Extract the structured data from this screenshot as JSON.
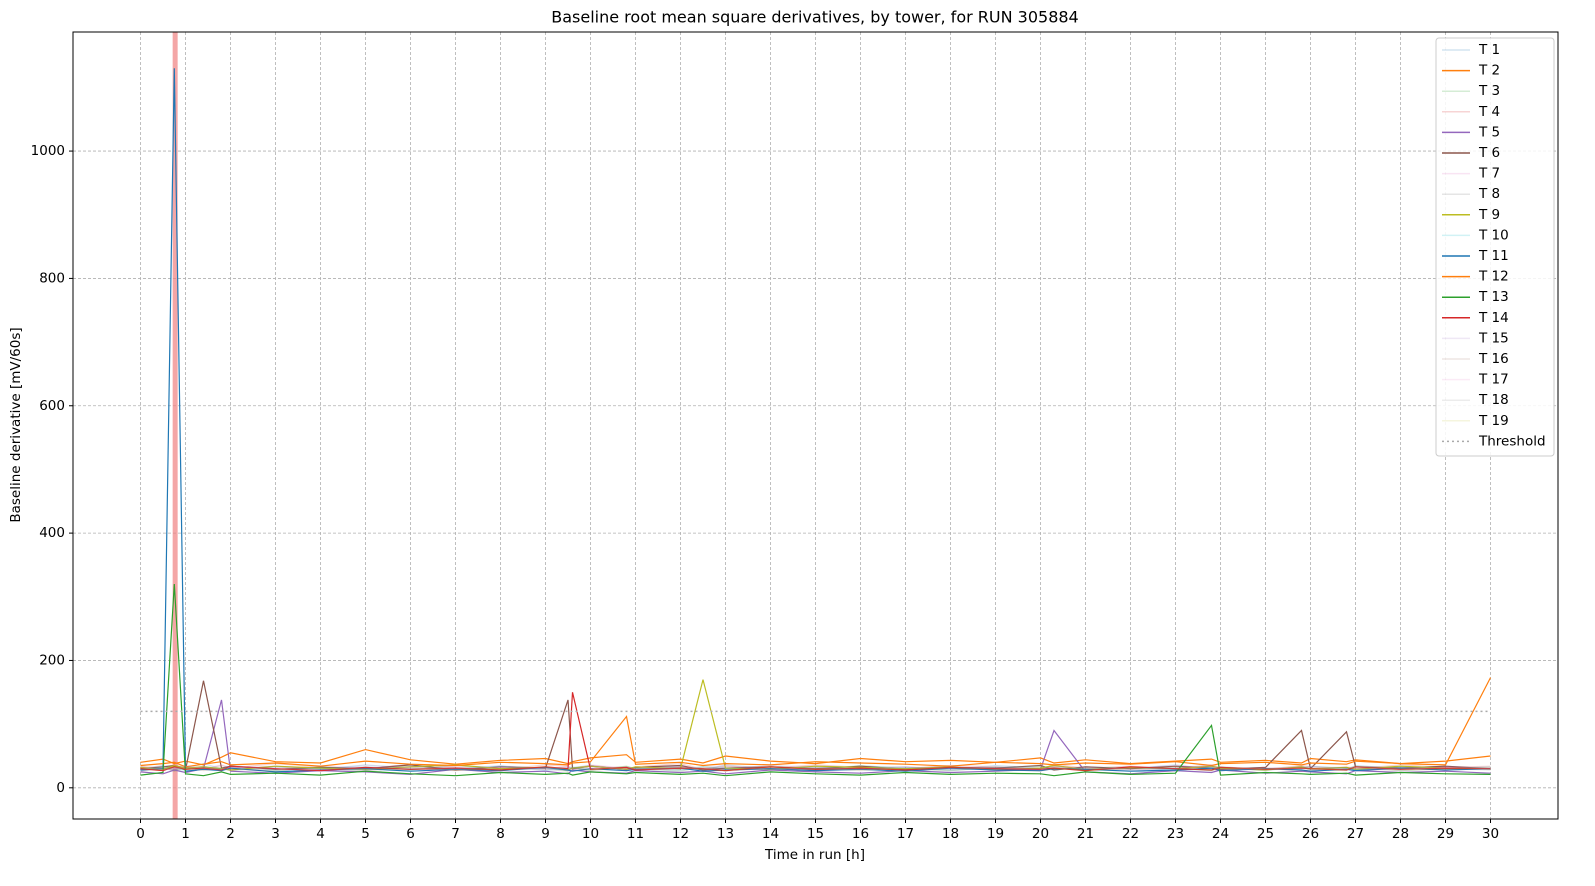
{
  "chart_data": {
    "type": "line",
    "title": "Baseline root mean square derivatives, by tower, for RUN 305884",
    "xlabel": "Time in run [h]",
    "ylabel": "Baseline derivative [mV/60s]",
    "xlim": [
      -1.5,
      31.5
    ],
    "ylim": [
      -49,
      1187
    ],
    "xticks": [
      0,
      1,
      2,
      3,
      4,
      5,
      6,
      7,
      8,
      9,
      10,
      11,
      12,
      13,
      14,
      15,
      16,
      17,
      18,
      19,
      20,
      21,
      22,
      23,
      24,
      25,
      26,
      27,
      28,
      29,
      30
    ],
    "yticks": [
      0,
      200,
      400,
      600,
      800,
      1000
    ],
    "grid": true,
    "legend": "upper right",
    "threshold": {
      "name": "Threshold",
      "value": 120,
      "color": "#aaaaaa",
      "x": [
        0,
        30
      ]
    },
    "highlight_x": 0.77,
    "highlight_color": "#f08080",
    "x": [
      0,
      0.5,
      0.75,
      1,
      1.4,
      1.8,
      2,
      3,
      4,
      5,
      6,
      7,
      8,
      9,
      9.5,
      9.6,
      10,
      10.8,
      11,
      12,
      12.5,
      13,
      14,
      15,
      16,
      17,
      18,
      19,
      20,
      20.3,
      21,
      22,
      23,
      23.8,
      24,
      25,
      25.8,
      26,
      26.8,
      27,
      28,
      29,
      30
    ],
    "series": [
      {
        "name": "T 1",
        "color": "#1f77b4",
        "alpha": 0.2,
        "values": [
          30,
          35,
          28,
          32,
          38,
          30,
          27,
          33,
          29,
          36,
          31,
          28,
          34,
          30,
          27,
          32,
          35,
          29,
          31,
          33,
          28,
          36,
          30,
          27,
          34,
          32,
          29,
          35,
          31,
          28,
          33,
          30,
          36,
          29,
          32,
          27,
          34,
          31,
          28,
          35,
          30,
          33,
          29
        ]
      },
      {
        "name": "T 2",
        "color": "#ff7f0e",
        "alpha": 1,
        "values": [
          40,
          45,
          38,
          42,
          36,
          48,
          55,
          41,
          39,
          60,
          44,
          37,
          43,
          46,
          38,
          41,
          47,
          52,
          40,
          45,
          39,
          50,
          42,
          38,
          46,
          41,
          43,
          40,
          47,
          39,
          44,
          38,
          42,
          45,
          40,
          43,
          39,
          46,
          41,
          44,
          38,
          42,
          50
        ]
      },
      {
        "name": "T 3",
        "color": "#2ca02c",
        "alpha": 0.2,
        "values": [
          28,
          32,
          26,
          30,
          34,
          29,
          31,
          27,
          33,
          30,
          28,
          35,
          29,
          32,
          27,
          31,
          28,
          34,
          30,
          26,
          33,
          29,
          31,
          28,
          35,
          30,
          27,
          32,
          29,
          34,
          28,
          31,
          30,
          27,
          33,
          29,
          32,
          28,
          30,
          34,
          27,
          31,
          29
        ]
      },
      {
        "name": "T 4",
        "color": "#d62728",
        "alpha": 0.2,
        "values": [
          34,
          30,
          36,
          32,
          29,
          35,
          31,
          38,
          33,
          30,
          37,
          32,
          29,
          36,
          34,
          31,
          35,
          30,
          33,
          38,
          29,
          34,
          31,
          36,
          32,
          30,
          35,
          33,
          29,
          37,
          31,
          34,
          30,
          36,
          32,
          29,
          35,
          33,
          31,
          30,
          36,
          32,
          34
        ]
      },
      {
        "name": "T 5",
        "color": "#9467bd",
        "alpha": 1,
        "values": [
          25,
          22,
          28,
          24,
          30,
          138,
          26,
          23,
          27,
          25,
          21,
          29,
          24,
          26,
          22,
          28,
          25,
          23,
          27,
          24,
          26,
          22,
          28,
          25,
          23,
          27,
          24,
          26,
          29,
          90,
          25,
          22,
          27,
          24,
          28,
          23,
          26,
          25,
          22,
          27,
          24,
          26,
          23
        ]
      },
      {
        "name": "T 6",
        "color": "#8c564b",
        "alpha": 1,
        "values": [
          30,
          33,
          35,
          28,
          168,
          31,
          34,
          29,
          32,
          30,
          36,
          28,
          33,
          31,
          138,
          30,
          34,
          29,
          32,
          35,
          28,
          31,
          33,
          30,
          34,
          29,
          32,
          31,
          35,
          28,
          33,
          30,
          34,
          31,
          29,
          32,
          90,
          30,
          88,
          33,
          31,
          34,
          30
        ]
      },
      {
        "name": "T 7",
        "color": "#e377c2",
        "alpha": 0.2,
        "values": [
          31,
          34,
          29,
          33,
          30,
          36,
          32,
          28,
          35,
          31,
          29,
          34,
          32,
          30,
          33,
          28,
          36,
          31,
          29,
          34,
          30,
          32,
          28,
          35,
          31,
          33,
          29,
          30,
          34,
          32,
          28,
          31,
          35,
          30,
          33,
          29,
          32,
          34,
          30,
          28,
          33,
          31,
          32
        ]
      },
      {
        "name": "T 8",
        "color": "#7f7f7f",
        "alpha": 0.2,
        "values": [
          27,
          31,
          29,
          33,
          28,
          30,
          34,
          29,
          31,
          27,
          33,
          30,
          28,
          32,
          29,
          31,
          27,
          33,
          30,
          28,
          32,
          29,
          34,
          30,
          27,
          31,
          33,
          28,
          30,
          32,
          29,
          27,
          31,
          33,
          28,
          30,
          32,
          29,
          31,
          27,
          33,
          30,
          28
        ]
      },
      {
        "name": "T 9",
        "color": "#bcbd22",
        "alpha": 1,
        "values": [
          32,
          29,
          35,
          31,
          33,
          30,
          28,
          34,
          31,
          29,
          33,
          36,
          30,
          32,
          28,
          31,
          34,
          29,
          33,
          30,
          170,
          31,
          29,
          34,
          32,
          30,
          33,
          28,
          31,
          35,
          29,
          32,
          30,
          34,
          31,
          28,
          33,
          30,
          32,
          29,
          34,
          31,
          30
        ]
      },
      {
        "name": "T 10",
        "color": "#17becf",
        "alpha": 0.2,
        "values": [
          29,
          33,
          31,
          27,
          32,
          30,
          35,
          28,
          31,
          33,
          29,
          30,
          34,
          27,
          31,
          32,
          29,
          33,
          30,
          28,
          34,
          31,
          29,
          32,
          30,
          33,
          28,
          31,
          34,
          29,
          30,
          33,
          27,
          31,
          32,
          29,
          30,
          34,
          31,
          28,
          32,
          30,
          33
        ]
      },
      {
        "name": "T 11",
        "color": "#1f77b4",
        "alpha": 1,
        "values": [
          28,
          30,
          1130,
          26,
          29,
          27,
          31,
          25,
          28,
          30,
          26,
          29,
          27,
          32,
          28,
          26,
          30,
          27,
          29,
          31,
          26,
          28,
          30,
          27,
          29,
          26,
          31,
          28,
          27,
          30,
          29,
          26,
          28,
          31,
          27,
          30,
          28,
          26,
          29,
          27,
          31,
          28,
          30
        ]
      },
      {
        "name": "T 12",
        "color": "#ff7f0e",
        "alpha": 1,
        "values": [
          35,
          38,
          40,
          33,
          37,
          41,
          36,
          39,
          34,
          42,
          37,
          35,
          40,
          38,
          36,
          39,
          41,
          112,
          37,
          40,
          35,
          38,
          36,
          41,
          39,
          37,
          34,
          40,
          38,
          36,
          39,
          37,
          41,
          35,
          38,
          40,
          36,
          39,
          37,
          42,
          38,
          36,
          173
        ]
      },
      {
        "name": "T 13",
        "color": "#2ca02c",
        "alpha": 1,
        "values": [
          20,
          24,
          320,
          22,
          19,
          25,
          21,
          23,
          20,
          26,
          22,
          19,
          24,
          21,
          23,
          20,
          25,
          22,
          24,
          21,
          23,
          19,
          25,
          22,
          20,
          24,
          21,
          23,
          22,
          19,
          25,
          21,
          23,
          98,
          20,
          24,
          22,
          21,
          23,
          20,
          24,
          22,
          21
        ]
      },
      {
        "name": "T 14",
        "color": "#d62728",
        "alpha": 1,
        "values": [
          30,
          27,
          33,
          29,
          31,
          28,
          34,
          30,
          27,
          32,
          29,
          31,
          28,
          33,
          30,
          150,
          29,
          32,
          28,
          31,
          30,
          27,
          33,
          29,
          31,
          28,
          32,
          30,
          29,
          31,
          27,
          33,
          30,
          28,
          32,
          29,
          31,
          30,
          28,
          33,
          29,
          31,
          30
        ]
      },
      {
        "name": "T 15",
        "color": "#9467bd",
        "alpha": 0.15,
        "values": [
          33,
          29,
          31,
          35,
          30,
          28,
          32,
          34,
          29,
          31,
          33,
          30,
          35,
          28,
          32,
          30,
          34,
          29,
          31,
          33,
          28,
          30,
          35,
          32,
          29,
          31,
          34,
          30,
          28,
          33,
          31,
          29,
          32,
          35,
          30,
          28,
          31,
          33,
          29,
          32,
          30,
          34,
          31
        ]
      },
      {
        "name": "T 16",
        "color": "#8c564b",
        "alpha": 0.15,
        "values": [
          26,
          30,
          28,
          32,
          27,
          31,
          29,
          26,
          33,
          28,
          30,
          27,
          31,
          29,
          26,
          32,
          28,
          30,
          27,
          33,
          29,
          26,
          31,
          28,
          30,
          27,
          32,
          29,
          26,
          31,
          28,
          30,
          33,
          27,
          29,
          31,
          26,
          28,
          32,
          30,
          27,
          29,
          31
        ]
      },
      {
        "name": "T 17",
        "color": "#e377c2",
        "alpha": 0.15,
        "values": [
          32,
          28,
          30,
          34,
          31,
          29,
          33,
          30,
          28,
          35,
          31,
          29,
          32,
          30,
          34,
          28,
          31,
          33,
          29,
          30,
          32,
          35,
          28,
          31,
          29,
          33,
          30,
          32,
          28,
          34,
          31,
          29,
          30,
          33,
          28,
          32,
          30,
          29,
          34,
          31,
          28,
          32,
          30
        ]
      },
      {
        "name": "T 18",
        "color": "#7f7f7f",
        "alpha": 0.15,
        "values": [
          29,
          32,
          27,
          31,
          33,
          28,
          30,
          32,
          29,
          27,
          34,
          31,
          28,
          30,
          32,
          29,
          33,
          27,
          31,
          29,
          30,
          34,
          28,
          32,
          29,
          31,
          27,
          33,
          30,
          28,
          32,
          29,
          31,
          34,
          28,
          30,
          33,
          29,
          27,
          31,
          32,
          28,
          30
        ]
      },
      {
        "name": "T 19",
        "color": "#bcbd22",
        "alpha": 0.15,
        "values": [
          31,
          28,
          33,
          29,
          30,
          32,
          27,
          34,
          31,
          29,
          32,
          28,
          30,
          33,
          29,
          31,
          28,
          34,
          30,
          32,
          29,
          27,
          33,
          31,
          28,
          30,
          32,
          29,
          34,
          31,
          27,
          30,
          33,
          28,
          32,
          29,
          31,
          30,
          28,
          33,
          30,
          29,
          32
        ]
      }
    ]
  }
}
